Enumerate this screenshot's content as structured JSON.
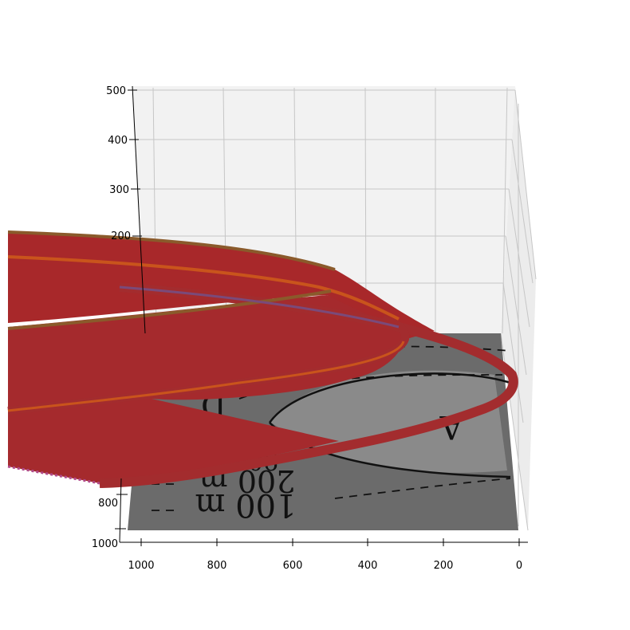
{
  "chart_data": {
    "type": "surface",
    "x_ticks": [
      "1000",
      "800",
      "600",
      "400",
      "200",
      "0"
    ],
    "y_ticks": [
      "800",
      "1000"
    ],
    "z_ticks": [
      "500",
      "400",
      "300",
      "200"
    ],
    "xlim": [
      0,
      1000
    ],
    "ylim": [
      0,
      1000
    ],
    "zlim": [
      0,
      500
    ],
    "grid": true,
    "ground_image_labels": [
      "100 m",
      "200 m",
      "A",
      "D",
      "90"
    ],
    "colors": {
      "surface": "#a8282a",
      "ridge": "#c9541c",
      "edge": "#8a5a2b",
      "ground": "#6b6b6b",
      "ground_light": "#8a8a8a",
      "pane": "#f2f2f2",
      "gridline": "#c6c6c6"
    }
  }
}
